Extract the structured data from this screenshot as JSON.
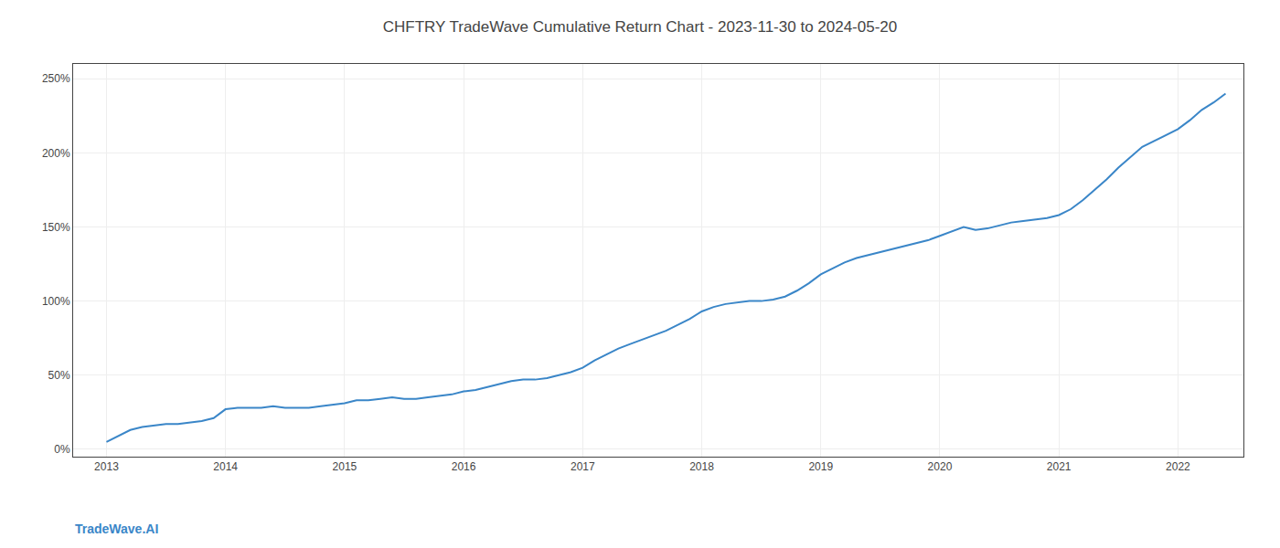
{
  "chart_data": {
    "type": "line",
    "title": "CHFTRY TradeWave Cumulative Return Chart - 2023-11-30 to 2024-05-20",
    "annotations": [
      {
        "text": "TradeWave.AI"
      }
    ],
    "color": "#3a86c8",
    "grid": true,
    "x": [
      2013.0,
      2013.1,
      2013.2,
      2013.3,
      2013.4,
      2013.5,
      2013.6,
      2013.7,
      2013.8,
      2013.9,
      2014.0,
      2014.1,
      2014.2,
      2014.3,
      2014.4,
      2014.5,
      2014.6,
      2014.7,
      2014.8,
      2014.9,
      2015.0,
      2015.1,
      2015.2,
      2015.3,
      2015.4,
      2015.5,
      2015.6,
      2015.7,
      2015.8,
      2015.9,
      2016.0,
      2016.1,
      2016.2,
      2016.3,
      2016.4,
      2016.5,
      2016.6,
      2016.7,
      2016.8,
      2016.9,
      2017.0,
      2017.1,
      2017.2,
      2017.3,
      2017.4,
      2017.5,
      2017.6,
      2017.7,
      2017.8,
      2017.9,
      2018.0,
      2018.1,
      2018.2,
      2018.3,
      2018.4,
      2018.5,
      2018.6,
      2018.7,
      2018.8,
      2018.9,
      2019.0,
      2019.1,
      2019.2,
      2019.3,
      2019.4,
      2019.5,
      2019.6,
      2019.7,
      2019.8,
      2019.9,
      2020.0,
      2020.1,
      2020.2,
      2020.3,
      2020.4,
      2020.5,
      2020.6,
      2020.7,
      2020.8,
      2020.9,
      2021.0,
      2021.1,
      2021.2,
      2021.3,
      2021.4,
      2021.5,
      2021.6,
      2021.7,
      2021.8,
      2021.9,
      2022.0,
      2022.1,
      2022.2,
      2022.3,
      2022.4
    ],
    "values": [
      5,
      9,
      13,
      15,
      16,
      17,
      17,
      18,
      19,
      21,
      27,
      28,
      28,
      28,
      29,
      28,
      28,
      28,
      29,
      30,
      31,
      33,
      33,
      34,
      35,
      34,
      34,
      35,
      36,
      37,
      39,
      40,
      42,
      44,
      46,
      47,
      47,
      48,
      50,
      52,
      55,
      60,
      64,
      68,
      71,
      74,
      77,
      80,
      84,
      88,
      93,
      96,
      98,
      99,
      100,
      100,
      101,
      103,
      107,
      112,
      118,
      122,
      126,
      129,
      131,
      133,
      135,
      137,
      139,
      141,
      144,
      147,
      150,
      148,
      149,
      151,
      153,
      154,
      155,
      156,
      158,
      162,
      168,
      175,
      182,
      190,
      197,
      204,
      208,
      212,
      216,
      222,
      229,
      234,
      240
    ],
    "xlim": [
      2012.72,
      2022.55
    ],
    "xticks": [
      2013,
      2014,
      2015,
      2016,
      2017,
      2018,
      2019,
      2020,
      2021,
      2022
    ],
    "ylim": [
      -5,
      260
    ],
    "yticks": [
      {
        "value": 0,
        "label": "0%"
      },
      {
        "value": 50,
        "label": "50%"
      },
      {
        "value": 100,
        "label": "100%"
      },
      {
        "value": 150,
        "label": "150%"
      },
      {
        "value": 200,
        "label": "200%"
      },
      {
        "value": 250,
        "label": "250%"
      }
    ]
  }
}
